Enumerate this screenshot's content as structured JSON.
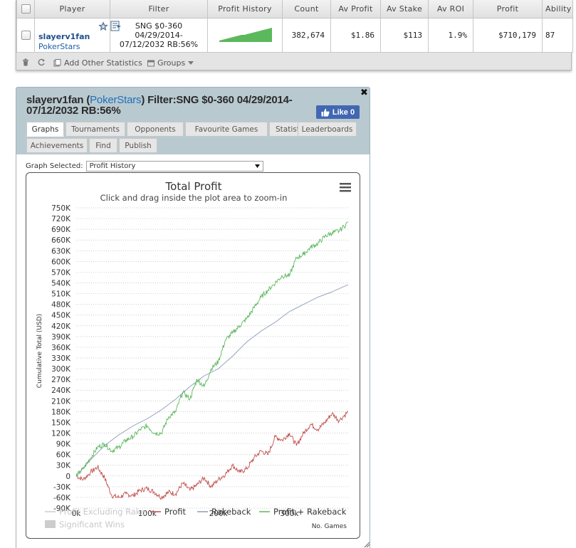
{
  "table": {
    "headers": [
      "Player",
      "Filter",
      "Profit History",
      "Count",
      "Av Profit",
      "Av Stake",
      "Av ROI",
      "Profit",
      "Ability"
    ],
    "row": {
      "player_name": "slayerv1fan",
      "player_site": "PokerStars",
      "filter_lines": [
        "SNG $0-360",
        "04/29/2014-",
        "07/12/2032 RB:56%"
      ],
      "count": "382,674",
      "av_profit": "$1.86",
      "av_stake": "$113",
      "av_roi": "1.9%",
      "profit": "$710,179",
      "ability": "87"
    },
    "sparkline": [
      2,
      3,
      4,
      5,
      6,
      7,
      8,
      9,
      10,
      10,
      11,
      12,
      13,
      14,
      15,
      16,
      17,
      18,
      19,
      20
    ]
  },
  "toolbar": {
    "add_other_statistics": "Add Other Statistics",
    "groups": "Groups"
  },
  "window": {
    "title_player": "slayerv1fan",
    "title_site": "PokerStars",
    "title_filter_line1": ") Filter:SNG $0-360 04/29/2014-",
    "title_filter_line2": "07/12/2032 RB:56%",
    "title_paren_open": " (",
    "like_label": "Like 0",
    "tabs": [
      "Graphs",
      "Tournaments",
      "Opponents",
      "Favourite Games",
      "Statistics",
      "Leaderboards",
      "Achievements",
      "Find",
      "Publish"
    ],
    "graph_selected_label": "Graph Selected:",
    "graph_selected_value": "Profit History"
  },
  "colors": {
    "profit": "#c0504d",
    "rakeback": "#8a9ab8",
    "profit_plus_rakeback": "#5cb85c",
    "like": "#4267b2"
  },
  "chart_data": {
    "type": "line",
    "title": "Total Profit",
    "subtitle": "Click and drag inside the plot area to zoom-in",
    "xlabel": "No. Games",
    "ylabel": "Cumulative Total (USD)",
    "ylim": [
      -90000,
      750000
    ],
    "yticks": [
      -90000,
      -60000,
      -30000,
      0,
      30000,
      60000,
      90000,
      120000,
      150000,
      180000,
      210000,
      240000,
      270000,
      300000,
      330000,
      360000,
      390000,
      420000,
      450000,
      480000,
      510000,
      540000,
      570000,
      600000,
      630000,
      660000,
      690000,
      720000,
      750000
    ],
    "ytick_labels": [
      "-90K",
      "-60K",
      "-30K",
      "0",
      "30K",
      "60K",
      "90K",
      "120K",
      "150K",
      "180K",
      "210K",
      "240K",
      "270K",
      "300K",
      "330K",
      "360K",
      "390K",
      "420K",
      "450K",
      "480K",
      "510K",
      "540K",
      "570K",
      "600K",
      "630K",
      "660K",
      "690K",
      "720K",
      "750K"
    ],
    "xticks": [
      0,
      100000,
      200000,
      300000
    ],
    "xtick_labels": [
      "0k",
      "100k",
      "200k",
      "300k"
    ],
    "xlim": [
      0,
      382674
    ],
    "legend": [
      "Profit Excluding Rake",
      "Profit",
      "Rakeback",
      "Profit + Rakeback",
      "Significant Wins"
    ],
    "legend_placement": "bottom",
    "series": [
      {
        "name": "Profit",
        "x": [
          0,
          10000,
          20000,
          30000,
          40000,
          50000,
          60000,
          70000,
          80000,
          90000,
          100000,
          110000,
          120000,
          130000,
          140000,
          150000,
          160000,
          170000,
          180000,
          190000,
          200000,
          210000,
          220000,
          230000,
          240000,
          250000,
          260000,
          270000,
          280000,
          290000,
          300000,
          310000,
          320000,
          330000,
          340000,
          350000,
          360000,
          370000,
          382674
        ],
        "y": [
          0,
          -10000,
          10000,
          25000,
          -5000,
          -55000,
          -60000,
          -50000,
          -55000,
          -40000,
          -35000,
          -45000,
          -60000,
          -45000,
          -50000,
          -20000,
          -40000,
          -25000,
          -5000,
          -30000,
          -10000,
          5000,
          30000,
          10000,
          20000,
          50000,
          70000,
          60000,
          110000,
          100000,
          120000,
          85000,
          120000,
          145000,
          130000,
          150000,
          175000,
          155000,
          180000
        ]
      },
      {
        "name": "Rakeback",
        "x": [
          0,
          20000,
          40000,
          60000,
          80000,
          100000,
          120000,
          140000,
          160000,
          180000,
          200000,
          220000,
          240000,
          260000,
          280000,
          300000,
          320000,
          340000,
          360000,
          382674
        ],
        "y": [
          0,
          45000,
          85000,
          115000,
          140000,
          160000,
          185000,
          215000,
          250000,
          280000,
          300000,
          335000,
          375000,
          405000,
          430000,
          460000,
          480000,
          500000,
          515000,
          535000
        ]
      },
      {
        "name": "Profit + Rakeback",
        "x": [
          0,
          10000,
          20000,
          30000,
          40000,
          50000,
          60000,
          70000,
          80000,
          90000,
          100000,
          110000,
          120000,
          130000,
          140000,
          150000,
          160000,
          170000,
          180000,
          190000,
          200000,
          210000,
          220000,
          230000,
          240000,
          250000,
          260000,
          270000,
          280000,
          290000,
          300000,
          310000,
          320000,
          330000,
          340000,
          350000,
          360000,
          370000,
          382674
        ],
        "y": [
          0,
          20000,
          50000,
          80000,
          90000,
          70000,
          80000,
          100000,
          110000,
          130000,
          140000,
          120000,
          120000,
          165000,
          180000,
          235000,
          215000,
          270000,
          250000,
          300000,
          320000,
          380000,
          400000,
          420000,
          440000,
          470000,
          500000,
          520000,
          540000,
          560000,
          560000,
          610000,
          620000,
          640000,
          650000,
          670000,
          680000,
          685000,
          710000
        ]
      }
    ]
  }
}
